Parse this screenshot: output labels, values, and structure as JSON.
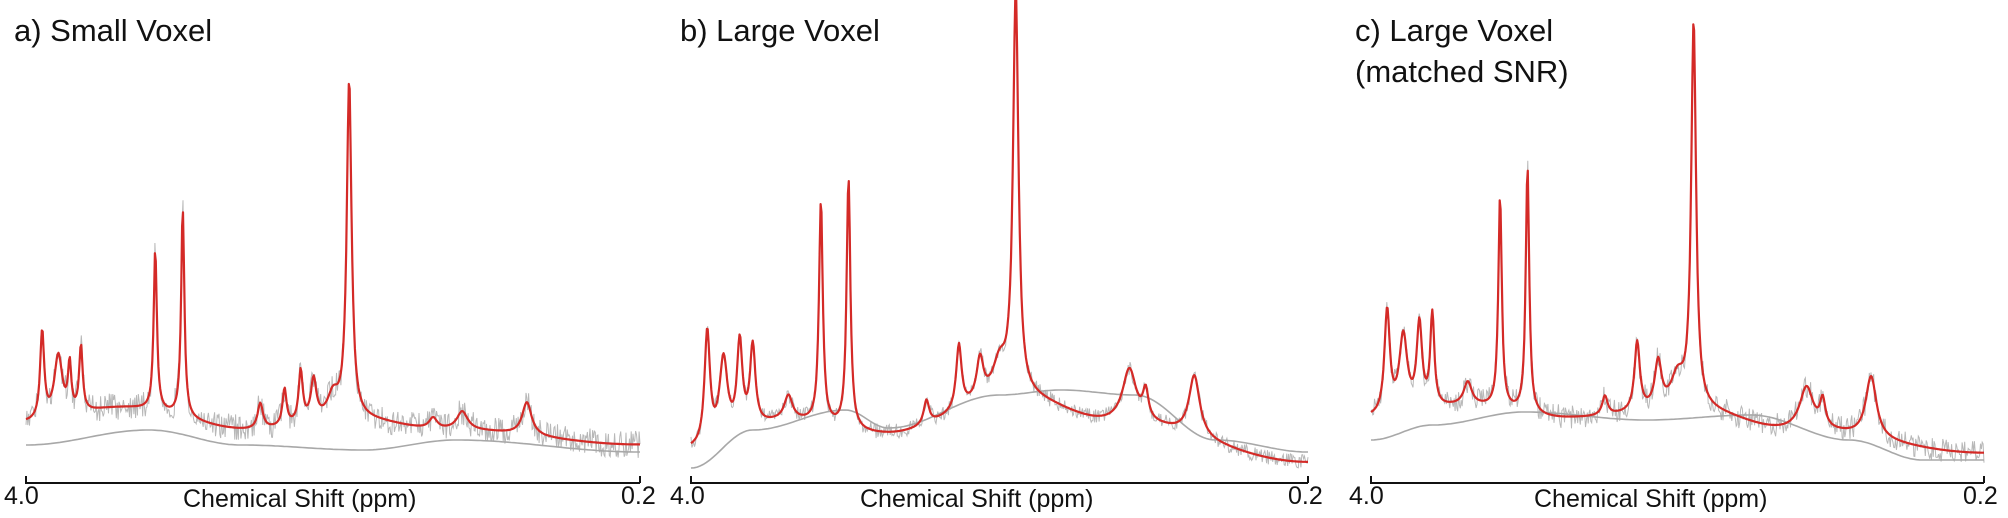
{
  "figure": {
    "colors": {
      "fit": "#d42a27",
      "raw": "#b8b8b8",
      "baseline": "#a8a8a8",
      "axis": "#111111"
    },
    "axis_label": "Chemical Shift (ppm)",
    "tick_left": "4.0",
    "tick_right": "0.2"
  },
  "chart_data": [
    {
      "type": "line",
      "title_lines": [
        "a) Small Voxel"
      ],
      "xlabel": "Chemical Shift (ppm)",
      "xlim": [
        4.0,
        0.2
      ],
      "x_reversed": true,
      "ylim": [
        0,
        1
      ],
      "grid": false,
      "series": [
        {
          "role": "fit",
          "baseline": [
            [
              4.0,
              0.02
            ],
            [
              3.4,
              0.06
            ],
            [
              2.6,
              0.0
            ],
            [
              2.0,
              0.03
            ],
            [
              1.4,
              0.0
            ],
            [
              0.2,
              -0.04
            ]
          ],
          "peaks": [
            [
              3.9,
              0.24,
              0.015
            ],
            [
              3.8,
              0.17,
              0.03
            ],
            [
              3.73,
              0.13,
              0.012
            ],
            [
              3.66,
              0.18,
              0.013
            ],
            [
              3.2,
              0.44,
              0.012
            ],
            [
              3.03,
              0.57,
              0.012
            ],
            [
              2.55,
              0.07,
              0.02
            ],
            [
              2.4,
              0.1,
              0.015
            ],
            [
              2.3,
              0.14,
              0.015
            ],
            [
              2.22,
              0.11,
              0.02
            ],
            [
              2.0,
              0.92,
              0.018
            ],
            [
              2.1,
              0.06,
              0.04
            ],
            [
              1.3,
              0.05,
              0.04
            ],
            [
              0.9,
              0.09,
              0.035
            ],
            [
              1.48,
              0.03,
              0.03
            ]
          ]
        },
        {
          "role": "raw",
          "noise_level": 0.035
        },
        {
          "role": "baseline"
        }
      ]
    },
    {
      "type": "line",
      "title_lines": [
        "b) Large Voxel"
      ],
      "xlabel": "Chemical Shift (ppm)",
      "xlim": [
        4.0,
        0.2
      ],
      "x_reversed": true,
      "ylim": [
        0,
        1
      ],
      "grid": false,
      "series": [
        {
          "role": "fit",
          "baseline": [
            [
              4.0,
              -0.05
            ],
            [
              3.4,
              0.02
            ],
            [
              2.8,
              -0.01
            ],
            [
              2.0,
              0.08
            ],
            [
              1.4,
              0.02
            ],
            [
              0.2,
              -0.08
            ]
          ],
          "peaks": [
            [
              3.9,
              0.28,
              0.02
            ],
            [
              3.8,
              0.2,
              0.03
            ],
            [
              3.7,
              0.22,
              0.02
            ],
            [
              3.62,
              0.2,
              0.02
            ],
            [
              3.2,
              0.55,
              0.014
            ],
            [
              3.03,
              0.62,
              0.014
            ],
            [
              3.4,
              0.06,
              0.03
            ],
            [
              2.55,
              0.06,
              0.02
            ],
            [
              2.35,
              0.16,
              0.02
            ],
            [
              2.22,
              0.1,
              0.025
            ],
            [
              2.0,
              1.0,
              0.02
            ],
            [
              2.1,
              0.08,
              0.05
            ],
            [
              1.3,
              0.13,
              0.05
            ],
            [
              1.2,
              0.07,
              0.02
            ],
            [
              0.9,
              0.15,
              0.04
            ]
          ]
        },
        {
          "role": "raw",
          "noise_level": 0.018
        },
        {
          "role": "baseline"
        }
      ]
    },
    {
      "type": "line",
      "title_lines": [
        "c) Large Voxel",
        "(matched SNR)"
      ],
      "xlabel": "Chemical Shift (ppm)",
      "xlim": [
        4.0,
        0.2
      ],
      "x_reversed": true,
      "ylim": [
        0,
        1
      ],
      "grid": false,
      "series": [
        {
          "role": "fit",
          "baseline": [
            [
              4.0,
              0.03
            ],
            [
              3.4,
              0.06
            ],
            [
              2.8,
              0.03
            ],
            [
              2.0,
              0.05
            ],
            [
              1.4,
              0.0
            ],
            [
              0.2,
              -0.06
            ]
          ],
          "peaks": [
            [
              3.9,
              0.27,
              0.02
            ],
            [
              3.8,
              0.2,
              0.03
            ],
            [
              3.7,
              0.22,
              0.02
            ],
            [
              3.62,
              0.24,
              0.015
            ],
            [
              3.2,
              0.55,
              0.013
            ],
            [
              3.03,
              0.64,
              0.013
            ],
            [
              3.4,
              0.06,
              0.03
            ],
            [
              2.55,
              0.05,
              0.02
            ],
            [
              2.35,
              0.18,
              0.02
            ],
            [
              2.22,
              0.12,
              0.025
            ],
            [
              2.0,
              1.0,
              0.018
            ],
            [
              2.1,
              0.08,
              0.05
            ],
            [
              1.3,
              0.11,
              0.05
            ],
            [
              1.2,
              0.07,
              0.02
            ],
            [
              0.9,
              0.16,
              0.04
            ]
          ]
        },
        {
          "role": "raw",
          "noise_level": 0.03
        },
        {
          "role": "baseline"
        }
      ]
    }
  ]
}
